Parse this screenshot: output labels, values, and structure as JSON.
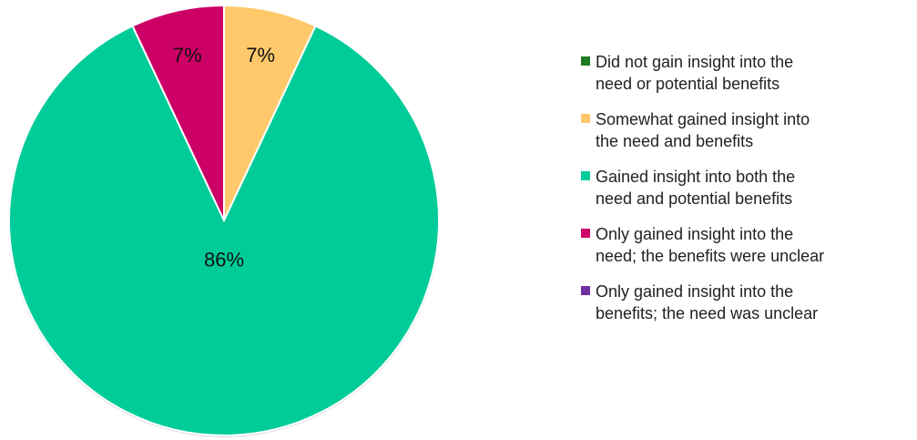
{
  "chart_data": {
    "type": "pie",
    "title": "",
    "start_angle_deg": 0,
    "direction": "clockwise",
    "slices": [
      {
        "label": "Did not gain insight into the need or potential benefits",
        "value": 0,
        "display": "",
        "color": "#1E7B1E"
      },
      {
        "label": "Somewhat gained insight into the need and benefits",
        "value": 7,
        "display": "7%",
        "color": "#FFC96B"
      },
      {
        "label": "Gained insight into both the need and potential benefits",
        "value": 86,
        "display": "86%",
        "color": "#00CC99"
      },
      {
        "label": "Only gained insight into the need; the benefits were unclear",
        "value": 7,
        "display": "7%",
        "color": "#CC0066"
      },
      {
        "label": "Only gained insight into the benefits; the need was unclear",
        "value": 0,
        "display": "",
        "color": "#7030A0"
      }
    ],
    "legend": {
      "placement": "right",
      "entries": [
        "Did not gain insight into the\nneed or potential benefits",
        "Somewhat gained insight into\nthe need and benefits",
        "Gained insight into both the\nneed and potential benefits",
        "Only gained insight into the\nneed; the benefits were unclear",
        "Only gained insight into the\nbenefits; the need was unclear"
      ]
    }
  }
}
